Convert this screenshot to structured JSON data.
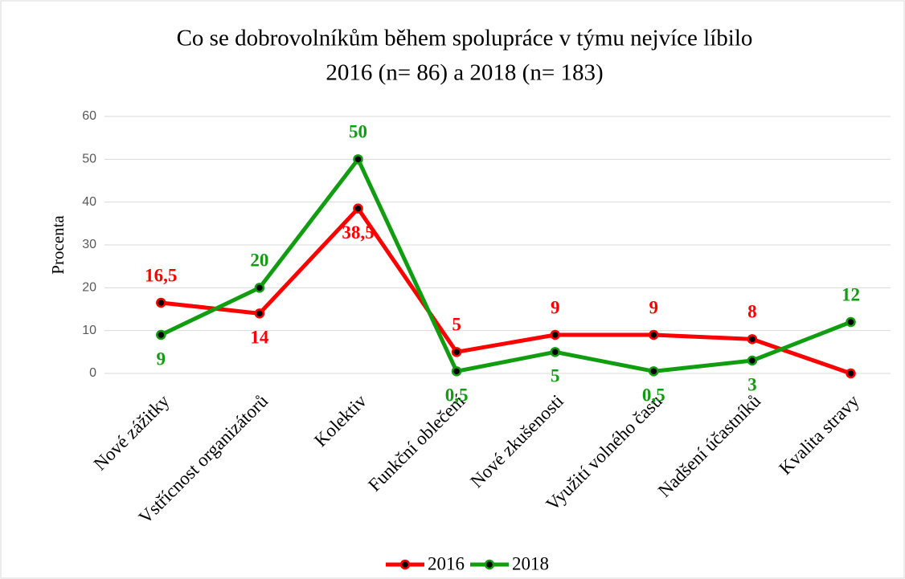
{
  "chart_data": {
    "type": "line",
    "title": "Co se dobrovolníkům během spolupráce v týmu nejvíce líbilo",
    "subtitle": "2016 (n= 86) a 2018 (n= 183)",
    "ylabel": "Procenta",
    "categories": [
      "Nové zážitky",
      "Vstřícnost organizátorů",
      "Kolektiv",
      "Funkční oblečení",
      "Nové zkušenosti",
      "Využití volného času",
      "Nadšení účastníků",
      "Kvalita stravy"
    ],
    "series": [
      {
        "name": "2016",
        "color": "#ff0000",
        "values": [
          16.5,
          14,
          38.5,
          5,
          9,
          9,
          8,
          0
        ],
        "value_labels": [
          "16,5",
          "14",
          "38,5",
          "5",
          "9",
          "9",
          "8",
          null
        ]
      },
      {
        "name": "2018",
        "color": "#109d10",
        "values": [
          9,
          20,
          50,
          0.5,
          5,
          0.5,
          3,
          12
        ],
        "value_labels": [
          "9",
          "20",
          "50",
          "0,5",
          "5",
          "0,5",
          "3",
          "12"
        ]
      }
    ],
    "ylim": [
      0,
      60
    ],
    "yticks": [
      0,
      10,
      20,
      30,
      40,
      50,
      60
    ],
    "grid": true,
    "legend": "bottom"
  }
}
